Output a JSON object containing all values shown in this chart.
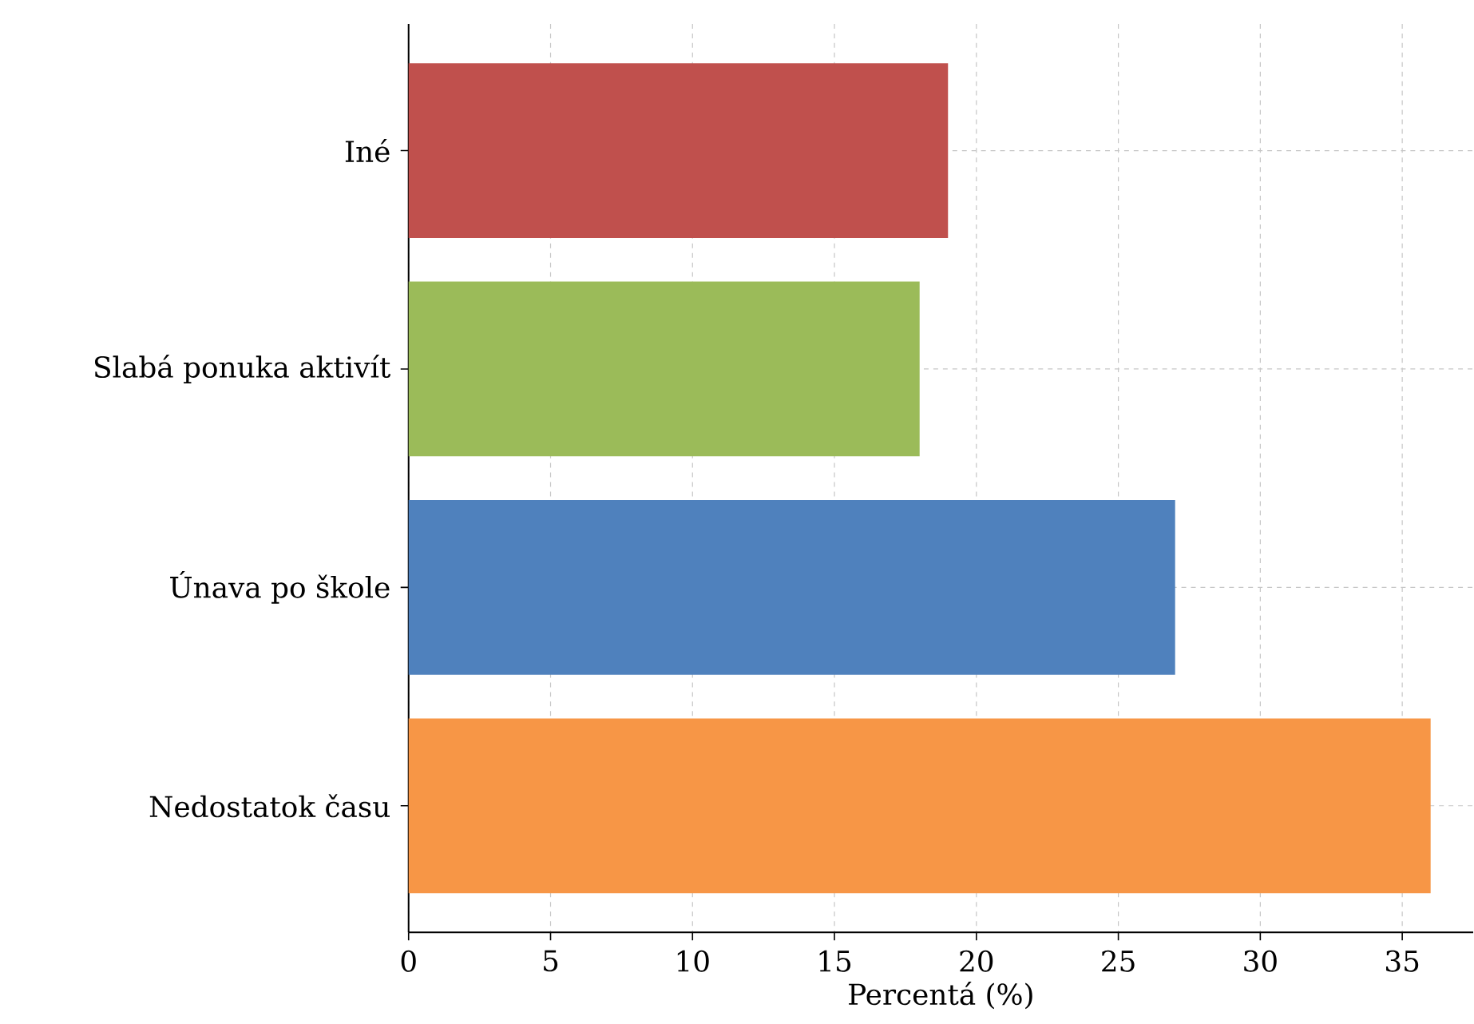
{
  "chart_data": {
    "type": "bar",
    "orientation": "horizontal",
    "categories": [
      "Iné",
      "Slabá ponuka aktivít",
      "Únava po škole",
      "Nedostatok času"
    ],
    "values": [
      19,
      18,
      27,
      36
    ],
    "colors": [
      "#c0504d",
      "#9bbb59",
      "#4f81bd",
      "#f79646"
    ],
    "xlabel": "Percentá (%)",
    "xlim": [
      0,
      37.5
    ],
    "xticks": [
      0,
      5,
      10,
      15,
      20,
      25,
      30,
      35
    ],
    "grid": true
  }
}
